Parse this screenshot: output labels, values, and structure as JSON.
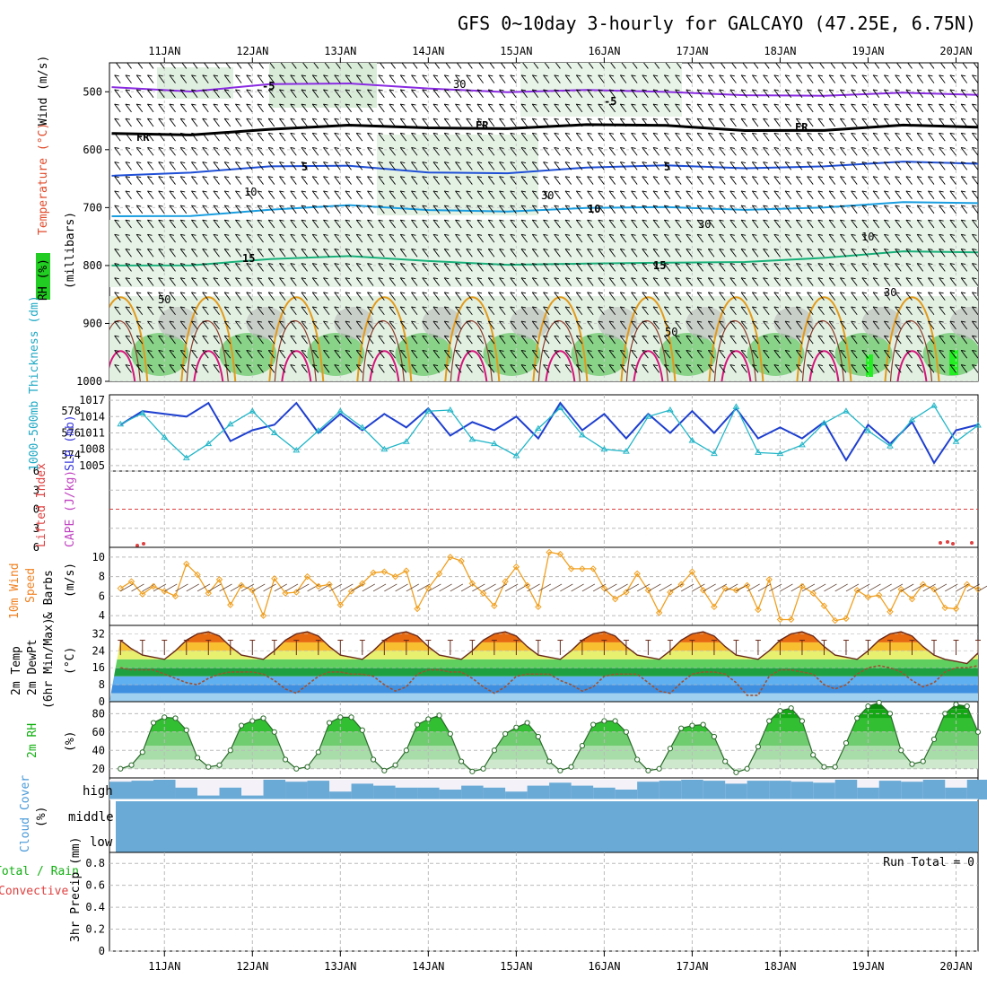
{
  "title": "GFS 0~10day 3-hourly for GALCAYO (47.25E, 6.75N)",
  "x_axis": {
    "date_labels": [
      "11JAN",
      "12JAN",
      "13JAN",
      "14JAN",
      "15JAN",
      "16JAN",
      "17JAN",
      "18JAN",
      "19JAN",
      "20JAN"
    ]
  },
  "panel_labels": {
    "upper_air": {
      "rh": "RH (%)",
      "temperature": "Temperature (°C)",
      "wind": "Wind (m/s)",
      "pressure": "(millibars)",
      "contour_labels": [
        "-5",
        "-5",
        "FR",
        "FR",
        "FR",
        "5",
        "5",
        "10",
        "15",
        "15",
        "30",
        "30",
        "10",
        "30",
        "50",
        "30",
        "50",
        "10"
      ]
    },
    "sfc_press": {
      "thickness": "1000-500mb Thickness (dm)",
      "slp": "SLP (mb)"
    },
    "stability": {
      "lifted": "Lifted Index",
      "cape": "CAPE (J/kg)"
    },
    "wind10m": {
      "a": "10m Wind",
      "b": "Speed",
      "c": "& Barbs",
      "unit": "(m/s)"
    },
    "temp2m": {
      "a": "2m Temp",
      "b": "2m DewPt",
      "c": "(6hr Min/Max)",
      "unit": "(°C)"
    },
    "rh2m": {
      "a": "2m RH",
      "unit": "(%)"
    },
    "cloud": {
      "a": "Cloud Cover",
      "unit": "(%)",
      "levels": [
        "high",
        "middle",
        "low"
      ]
    },
    "precip": {
      "a": "Total / Rain",
      "b": "Convective",
      "c": "3hr Precip (mm)",
      "run_total": "Run Total = 0"
    }
  },
  "colors": {
    "temp_line": "#8a2be2",
    "fr_line": "#000000",
    "blue_line": "#1f4fd6",
    "cyan_line": "#1a9ee0",
    "teal_line": "#18b07a",
    "orange_contour": "#e39a1a",
    "magenta_contour": "#d6147a",
    "slp_line": "#1e3fcf",
    "thick_line": "#22b6c8",
    "wind_line": "#f0a020",
    "temp_fill_hot": "#e85a10",
    "rh_green": "#22c022",
    "cloud_blue": "#6aaad6",
    "lifted_red": "#e04040"
  },
  "chart_data": [
    {
      "type": "line",
      "panel": "upper_air_cross_section",
      "ylabel": "(millibars)",
      "y_ticks": [
        500,
        600,
        700,
        800,
        900,
        1000
      ],
      "ylim": [
        1000,
        450
      ],
      "x_range_days": [
        10.375,
        20.25
      ],
      "series": [
        {
          "name": "-5",
          "values": [
            492,
            495,
            488,
            490,
            492,
            497,
            500,
            503,
            502,
            505,
            506,
            506
          ]
        },
        {
          "name": "FR",
          "values": [
            572,
            570,
            566,
            562,
            560,
            560,
            560,
            561,
            563,
            565,
            562,
            562
          ]
        },
        {
          "name": "5",
          "values": [
            645,
            635,
            630,
            632,
            637,
            637,
            634,
            630,
            628,
            627,
            625,
            625
          ]
        },
        {
          "name": "10",
          "values": [
            715,
            710,
            705,
            700,
            702,
            703,
            704,
            702,
            700,
            698,
            695,
            693
          ]
        },
        {
          "name": "15",
          "values": [
            800,
            795,
            790,
            788,
            790,
            795,
            800,
            798,
            790,
            785,
            780,
            778
          ]
        }
      ],
      "x": [
        10.4,
        11.3,
        12.2,
        13.1,
        14.0,
        14.9,
        15.8,
        16.7,
        17.6,
        18.5,
        19.4,
        20.25
      ]
    },
    {
      "type": "line",
      "panel": "thickness_slp",
      "x": [
        10.5,
        10.75,
        11.0,
        11.25,
        11.5,
        11.75,
        12.0,
        12.25,
        12.5,
        12.75,
        13.0,
        13.25,
        13.5,
        13.75,
        14.0,
        14.25,
        14.5,
        14.75,
        15.0,
        15.25,
        15.5,
        15.75,
        16.0,
        16.25,
        16.5,
        16.75,
        17.0,
        17.25,
        17.5,
        17.75,
        18.0,
        18.25,
        18.5,
        18.75,
        19.0,
        19.25,
        19.5,
        19.75,
        20.0,
        20.25
      ],
      "series": [
        {
          "name": "SLP (mb)",
          "values": [
            1012.5,
            1015.0,
            1014.5,
            1014.0,
            1016.5,
            1009.5,
            1011.5,
            1012.5,
            1016.5,
            1011.0,
            1014.5,
            1011.5,
            1014.5,
            1012.0,
            1015.5,
            1010.5,
            1013.0,
            1011.5,
            1014.0,
            1010.0,
            1016.5,
            1011.5,
            1014.5,
            1010.0,
            1014.5,
            1011.0,
            1015.0,
            1011.0,
            1015.5,
            1010.0,
            1012.0,
            1010.0,
            1013.0,
            1006.0,
            1012.5,
            1009.0,
            1013.0,
            1005.5,
            1011.5,
            1012.5
          ]
        },
        {
          "name": "1000-500mb Thickness (dm)",
          "values": [
            576.8,
            577.8,
            575.6,
            573.7,
            575.0,
            576.8,
            578.0,
            576.0,
            574.4,
            576.2,
            578.0,
            576.5,
            574.5,
            575.2,
            578.0,
            578.1,
            575.4,
            575.0,
            573.9,
            576.4,
            578.3,
            575.8,
            574.5,
            574.3,
            577.5,
            578.1,
            575.3,
            574.1,
            578.4,
            574.2,
            574.1,
            574.9,
            576.9,
            578.0,
            576.2,
            574.8,
            577.2,
            578.5,
            575.2,
            576.7
          ]
        }
      ],
      "y_ticks_slp": [
        1005,
        1008,
        1011,
        1014,
        1017
      ],
      "y_ticks_thickness": [
        574,
        576,
        578
      ]
    },
    {
      "type": "line",
      "panel": "lifted_index_cape",
      "y_ticks": [
        -6,
        -3,
        0,
        3,
        6
      ],
      "ylim": [
        6,
        -6
      ],
      "series": [
        {
          "name": "Lifted Index",
          "values": [
            6,
            6,
            6,
            6,
            6,
            6,
            6,
            6,
            6,
            6
          ]
        }
      ],
      "x": [
        11,
        12,
        13,
        14,
        15,
        16,
        17,
        18,
        19,
        20
      ]
    },
    {
      "type": "line",
      "panel": "wind10m",
      "ylabel": "(m/s)",
      "y_ticks": [
        4,
        6,
        8,
        10
      ],
      "ylim": [
        3,
        11
      ],
      "x": [
        10.5,
        10.625,
        10.75,
        10.875,
        11.0,
        11.125,
        11.25,
        11.375,
        11.5,
        11.625,
        11.75,
        11.875,
        12.0,
        12.125,
        12.25,
        12.375,
        12.5,
        12.625,
        12.75,
        12.875,
        13.0,
        13.125,
        13.25,
        13.375,
        13.5,
        13.625,
        13.75,
        13.875,
        14.0,
        14.125,
        14.25,
        14.375,
        14.5,
        14.625,
        14.75,
        14.875,
        15.0,
        15.125,
        15.25,
        15.375,
        15.5,
        15.625,
        15.75,
        15.875,
        16.0,
        16.125,
        16.25,
        16.375,
        16.5,
        16.625,
        16.75,
        16.875,
        17.0,
        17.125,
        17.25,
        17.375,
        17.5,
        17.625,
        17.75,
        17.875,
        18.0,
        18.125,
        18.25,
        18.375,
        18.5,
        18.625,
        18.75,
        18.875,
        19.0,
        19.125,
        19.25,
        19.375,
        19.5,
        19.625,
        19.75,
        19.875,
        20.0,
        20.125,
        20.25
      ],
      "series": [
        {
          "name": "10m Wind Speed",
          "values": [
            6.8,
            7.5,
            6.2,
            7.0,
            6.5,
            6.0,
            9.3,
            8.2,
            6.3,
            7.7,
            5.1,
            7.1,
            6.6,
            4.0,
            7.8,
            6.3,
            6.4,
            8.0,
            7.0,
            7.2,
            5.1,
            6.5,
            7.3,
            8.4,
            8.5,
            8.0,
            8.6,
            4.7,
            6.8,
            8.3,
            10.0,
            9.6,
            7.3,
            6.3,
            5.0,
            7.5,
            9.0,
            7.1,
            4.9,
            10.5,
            10.3,
            8.8,
            8.8,
            8.8,
            6.8,
            5.7,
            6.4,
            8.3,
            6.6,
            4.3,
            6.4,
            7.2,
            8.5,
            6.6,
            4.9,
            6.8,
            6.6,
            7.1,
            4.6,
            7.7,
            3.6,
            3.6,
            7.0,
            6.3,
            5.0,
            3.5,
            3.7,
            6.6,
            5.9,
            6.1,
            4.4,
            6.7,
            5.7,
            7.2,
            6.7,
            4.8,
            4.7,
            7.2,
            6.7
          ]
        }
      ]
    },
    {
      "type": "area",
      "panel": "temp2m",
      "ylabel": "(°C)",
      "y_ticks": [
        0,
        8,
        16,
        24,
        32
      ],
      "ylim": [
        0,
        36
      ],
      "x": [
        10.5,
        10.625,
        10.75,
        10.875,
        11.0,
        11.125,
        11.25,
        11.375,
        11.5,
        11.625,
        11.75,
        11.875,
        12.0,
        12.125,
        12.25,
        12.375,
        12.5,
        12.625,
        12.75,
        12.875,
        13.0,
        13.125,
        13.25,
        13.375,
        13.5,
        13.625,
        13.75,
        13.875,
        14.0,
        14.125,
        14.25,
        14.375,
        14.5,
        14.625,
        14.75,
        14.875,
        15.0,
        15.125,
        15.25,
        15.375,
        15.5,
        15.625,
        15.75,
        15.875,
        16.0,
        16.125,
        16.25,
        16.375,
        16.5,
        16.625,
        16.75,
        16.875,
        17.0,
        17.125,
        17.25,
        17.375,
        17.5,
        17.625,
        17.75,
        17.875,
        18.0,
        18.125,
        18.25,
        18.375,
        18.5,
        18.625,
        18.75,
        18.875,
        19.0,
        19.125,
        19.25,
        19.375,
        19.5,
        19.625,
        19.75,
        19.875,
        20.0,
        20.125,
        20.25
      ],
      "series": [
        {
          "name": "2m Temp",
          "values": [
            29,
            25,
            22,
            21,
            20,
            24,
            29,
            32,
            33,
            31,
            26,
            22,
            21,
            20,
            24,
            29,
            32,
            33,
            31,
            26,
            22,
            21,
            20,
            24,
            29,
            32,
            33,
            31,
            26,
            22,
            21,
            20,
            24,
            29,
            32,
            33,
            31,
            26,
            22,
            21,
            20,
            24,
            29,
            32,
            33,
            31,
            26,
            22,
            21,
            20,
            24,
            29,
            32,
            33,
            31,
            26,
            22,
            21,
            20,
            24,
            29,
            32,
            33,
            31,
            26,
            22,
            21,
            20,
            24,
            29,
            32,
            33,
            31,
            26,
            22,
            20,
            19,
            18,
            23
          ]
        },
        {
          "name": "2m DewPt",
          "values": [
            16,
            15,
            15,
            15,
            13,
            11,
            9,
            8,
            11,
            13,
            14,
            14,
            14,
            13,
            10,
            6,
            4,
            8,
            12,
            14,
            14,
            13,
            13,
            12,
            8,
            5,
            7,
            13,
            15,
            15,
            14,
            14,
            11,
            7,
            4,
            7,
            12,
            13,
            13,
            13,
            10,
            8,
            5,
            7,
            12,
            13,
            13,
            13,
            9,
            5,
            4,
            9,
            13,
            14,
            14,
            13,
            9,
            3,
            3,
            12,
            15,
            15,
            14,
            13,
            8,
            6,
            8,
            13,
            16,
            17,
            16,
            14,
            10,
            7,
            9,
            14,
            16,
            16,
            17
          ]
        }
      ]
    },
    {
      "type": "area",
      "panel": "rh2m",
      "ylabel": "(%)",
      "y_ticks": [
        20,
        40,
        60,
        80
      ],
      "ylim": [
        10,
        93
      ],
      "x": [
        10.5,
        10.625,
        10.75,
        10.875,
        11.0,
        11.125,
        11.25,
        11.375,
        11.5,
        11.625,
        11.75,
        11.875,
        12.0,
        12.125,
        12.25,
        12.375,
        12.5,
        12.625,
        12.75,
        12.875,
        13.0,
        13.125,
        13.25,
        13.375,
        13.5,
        13.625,
        13.75,
        13.875,
        14.0,
        14.125,
        14.25,
        14.375,
        14.5,
        14.625,
        14.75,
        14.875,
        15.0,
        15.125,
        15.25,
        15.375,
        15.5,
        15.625,
        15.75,
        15.875,
        16.0,
        16.125,
        16.25,
        16.375,
        16.5,
        16.625,
        16.75,
        16.875,
        17.0,
        17.125,
        17.25,
        17.375,
        17.5,
        17.625,
        17.75,
        17.875,
        18.0,
        18.125,
        18.25,
        18.375,
        18.5,
        18.625,
        18.75,
        18.875,
        19.0,
        19.125,
        19.25,
        19.375,
        19.5,
        19.625,
        19.75,
        19.875,
        20.0,
        20.125,
        20.25
      ],
      "series": [
        {
          "name": "2m RH",
          "values": [
            20,
            24,
            38,
            70,
            76,
            75,
            62,
            32,
            22,
            24,
            40,
            67,
            72,
            75,
            60,
            30,
            20,
            22,
            38,
            70,
            76,
            76,
            62,
            30,
            18,
            24,
            40,
            68,
            74,
            78,
            58,
            28,
            17,
            20,
            40,
            58,
            65,
            70,
            55,
            28,
            18,
            22,
            45,
            68,
            72,
            72,
            60,
            30,
            18,
            20,
            42,
            64,
            67,
            68,
            55,
            28,
            16,
            20,
            44,
            72,
            83,
            86,
            72,
            35,
            22,
            22,
            48,
            75,
            88,
            92,
            80,
            40,
            25,
            28,
            52,
            80,
            90,
            88,
            60
          ]
        }
      ]
    },
    {
      "type": "bar",
      "panel": "cloud_cover_high",
      "ylabel": "(%)",
      "x": [
        10.5,
        10.75,
        11.0,
        11.25,
        11.5,
        11.75,
        12.0,
        12.25,
        12.5,
        12.75,
        13.0,
        13.25,
        13.5,
        13.75,
        14.0,
        14.25,
        14.5,
        14.75,
        15.0,
        15.25,
        15.5,
        15.75,
        16.0,
        16.25,
        16.5,
        16.75,
        17.0,
        17.25,
        17.5,
        17.75,
        18.0,
        18.25,
        18.5,
        18.75,
        19.0,
        19.25,
        19.5,
        19.75,
        20.0,
        20.25
      ],
      "values": [
        90,
        95,
        100,
        60,
        20,
        60,
        20,
        100,
        90,
        95,
        40,
        80,
        70,
        60,
        60,
        50,
        70,
        60,
        40,
        70,
        85,
        70,
        60,
        50,
        90,
        95,
        100,
        95,
        80,
        95,
        95,
        90,
        85,
        100,
        60,
        95,
        90,
        100,
        60,
        100
      ]
    },
    {
      "type": "bar",
      "panel": "precip_3hr",
      "ylabel": "3hr Precip (mm)",
      "y_ticks": [
        0,
        0.2,
        0.4,
        0.6,
        0.8
      ],
      "ylim": [
        0,
        0.9
      ],
      "x": [
        11,
        12,
        13,
        14,
        15,
        16,
        17,
        18,
        19,
        20
      ],
      "values": [
        0,
        0,
        0,
        0,
        0,
        0,
        0,
        0,
        0,
        0
      ]
    }
  ]
}
